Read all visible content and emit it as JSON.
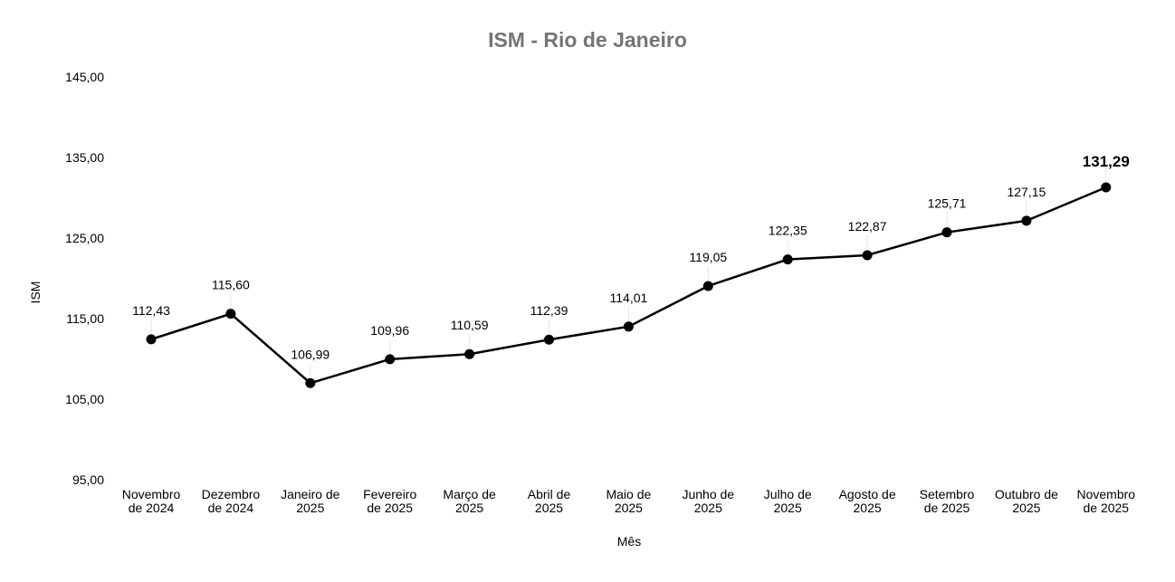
{
  "chart_data": {
    "type": "line",
    "title": "ISM - Rio de Janeiro",
    "xlabel": "Mês",
    "ylabel": "ISM",
    "ylim": [
      95,
      145
    ],
    "yticks": [
      "95,00",
      "105,00",
      "115,00",
      "125,00",
      "135,00",
      "145,00"
    ],
    "ytick_values": [
      95,
      105,
      115,
      125,
      135,
      145
    ],
    "grid": false,
    "categories": [
      [
        "Novembro",
        "de 2024"
      ],
      [
        "Dezembro",
        "de 2024"
      ],
      [
        "Janeiro de",
        "2025"
      ],
      [
        "Fevereiro",
        "de 2025"
      ],
      [
        "Março de",
        "2025"
      ],
      [
        "Abril de",
        "2025"
      ],
      [
        "Maio de",
        "2025"
      ],
      [
        "Junho de",
        "2025"
      ],
      [
        "Julho de",
        "2025"
      ],
      [
        "Agosto de",
        "2025"
      ],
      [
        "Setembro",
        "de 2025"
      ],
      [
        "Outubro de",
        "2025"
      ],
      [
        "Novembro",
        "de 2025"
      ]
    ],
    "series": [
      {
        "name": "ISM",
        "color": "#000000",
        "values": [
          112.43,
          115.6,
          106.99,
          109.96,
          110.59,
          112.39,
          114.01,
          119.05,
          122.35,
          122.87,
          125.71,
          127.15,
          131.29
        ],
        "labels": [
          "112,43",
          "115,60",
          "106,99",
          "109,96",
          "110,59",
          "112,39",
          "114,01",
          "119,05",
          "122,35",
          "122,87",
          "125,71",
          "127,15",
          "131,29"
        ],
        "highlight_last": true
      }
    ]
  }
}
